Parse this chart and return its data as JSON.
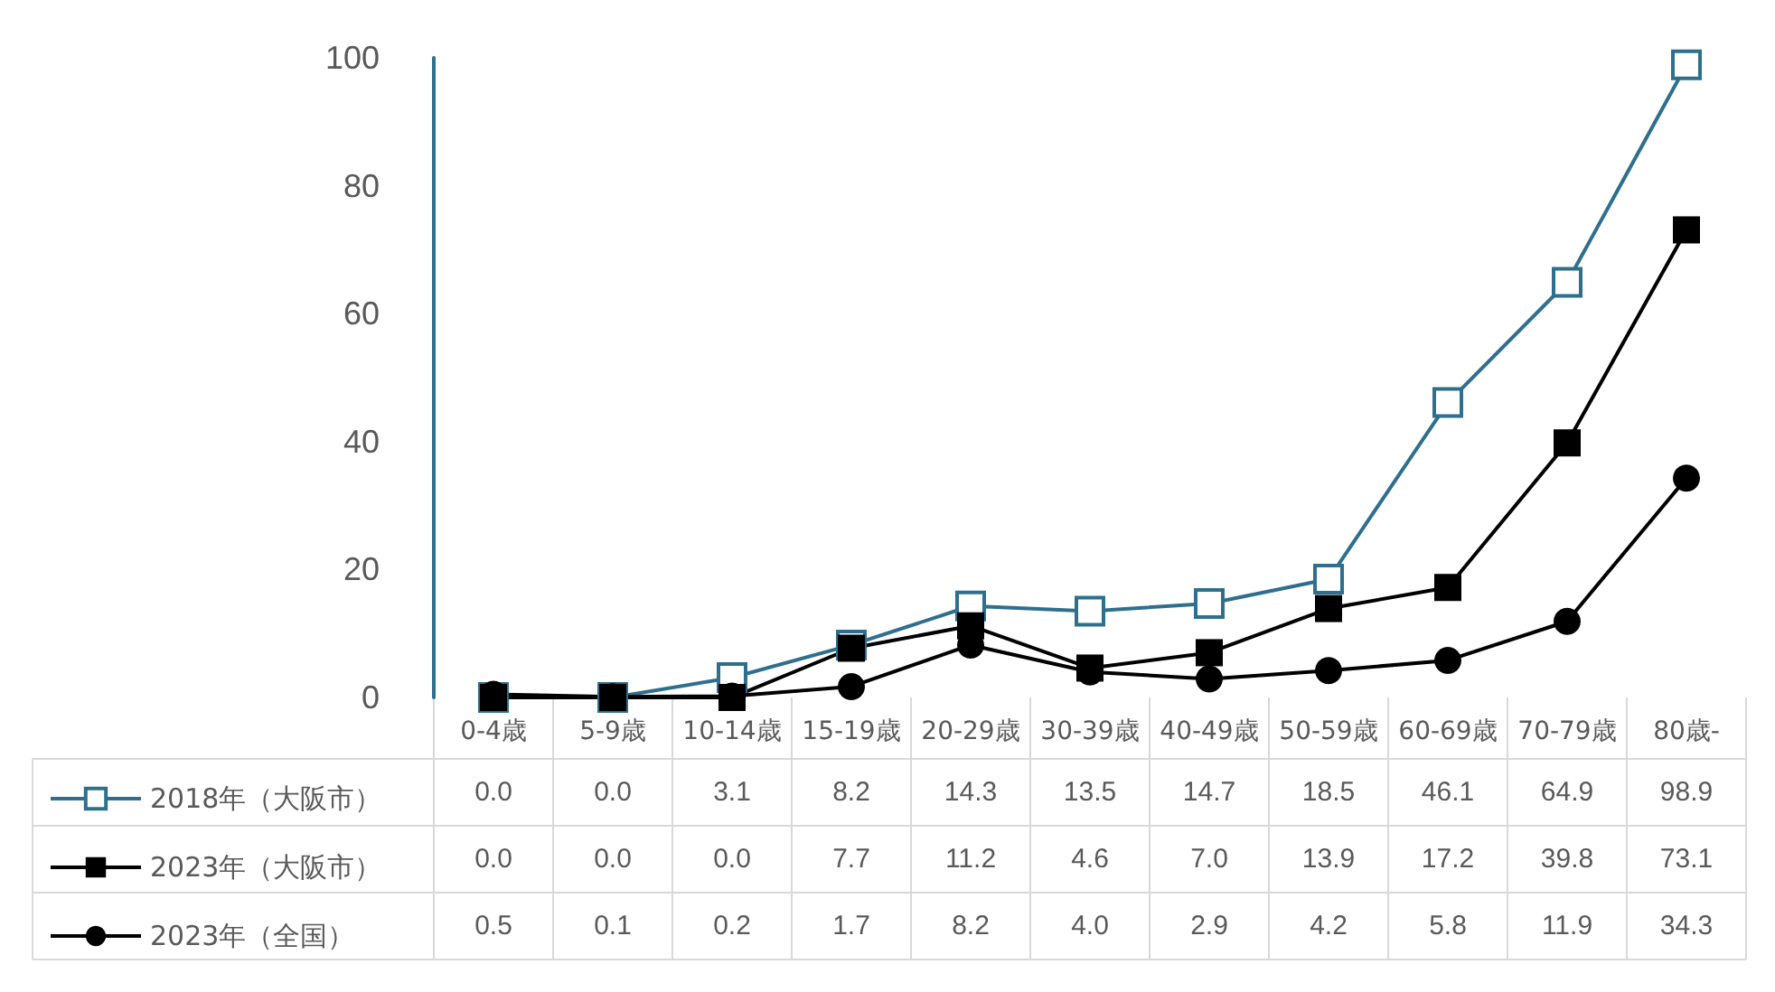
{
  "chart_data": {
    "type": "line",
    "categories": [
      "0-4歳",
      "5-9歳",
      "10-14歳",
      "15-19歳",
      "20-29歳",
      "30-39歳",
      "40-49歳",
      "50-59歳",
      "60-69歳",
      "70-79歳",
      "80歳-"
    ],
    "series": [
      {
        "name": "2018年（大阪市）",
        "color": "#2e6f8e",
        "marker": "square",
        "values": [
          0.0,
          0.0,
          3.1,
          8.2,
          14.3,
          13.5,
          14.7,
          18.5,
          46.1,
          64.9,
          98.9
        ],
        "value_labels": [
          "0.0",
          "0.0",
          "3.1",
          "8.2",
          "14.3",
          "13.5",
          "14.7",
          "18.5",
          "46.1",
          "64.9",
          "98.9"
        ]
      },
      {
        "name": "2023年（大阪市）",
        "color": "#000000",
        "marker": "square",
        "values": [
          0.0,
          0.0,
          0.0,
          7.7,
          11.2,
          4.6,
          7.0,
          13.9,
          17.2,
          39.8,
          73.1
        ],
        "value_labels": [
          "0.0",
          "0.0",
          "0.0",
          "7.7",
          "11.2",
          "4.6",
          "7.0",
          "13.9",
          "17.2",
          "39.8",
          "73.1"
        ]
      },
      {
        "name": "2023年（全国）",
        "color": "#000000",
        "marker": "circle",
        "values": [
          0.5,
          0.1,
          0.2,
          1.7,
          8.2,
          4.0,
          2.9,
          4.2,
          5.8,
          11.9,
          34.3
        ],
        "value_labels": [
          "0.5",
          "0.1",
          "0.2",
          "1.7",
          "8.2",
          "4.0",
          "2.9",
          "4.2",
          "5.8",
          "11.9",
          "34.3"
        ]
      }
    ],
    "ylim": [
      0,
      100
    ],
    "yticks": [
      0,
      20,
      40,
      60,
      80,
      100
    ],
    "grid": false,
    "legend": "bottom"
  }
}
